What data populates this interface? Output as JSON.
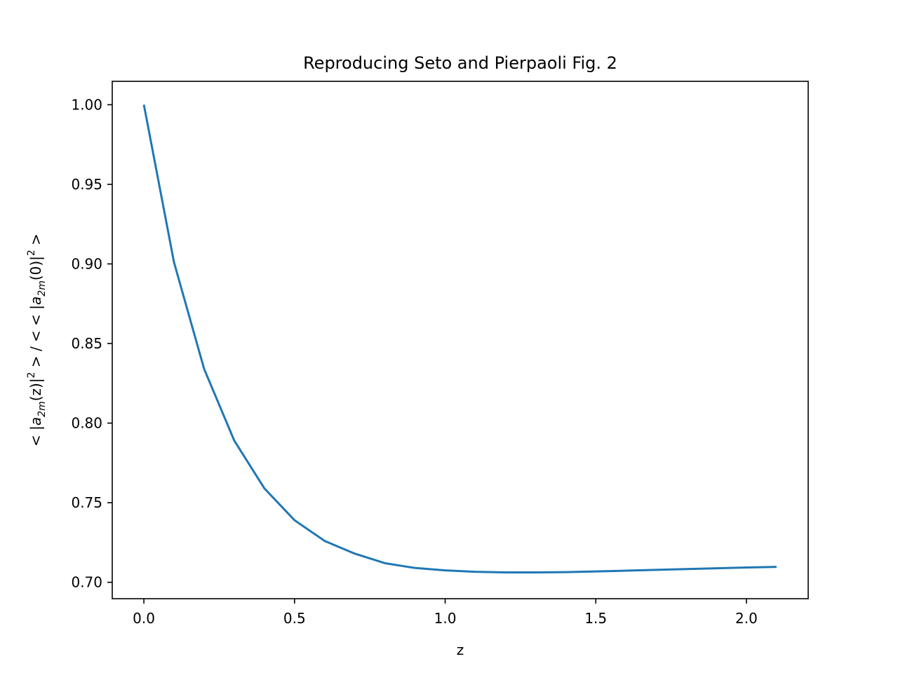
{
  "chart_data": {
    "type": "line",
    "title": "Reproducing Seto and Pierpaoli Fig. 2",
    "xlabel": "z",
    "ylabel": {
      "open": "< |",
      "num_var": "a",
      "num_sub": "2m",
      "num_arg": "(z)|",
      "num_exp": "2",
      "mid": " > / < < |",
      "den_var": "a",
      "den_sub": "2m",
      "den_arg": "(0)|",
      "den_exp": "2",
      "close": " >"
    },
    "xlim": [
      -0.105,
      2.205
    ],
    "ylim": [
      0.6897,
      1.0147
    ],
    "xticks": [
      0.0,
      0.5,
      1.0,
      1.5,
      2.0
    ],
    "xtick_labels": [
      "0.0",
      "0.5",
      "1.0",
      "1.5",
      "2.0"
    ],
    "yticks": [
      0.7,
      0.75,
      0.8,
      0.85,
      0.9,
      0.95,
      1.0
    ],
    "ytick_labels": [
      "0.70",
      "0.75",
      "0.80",
      "0.85",
      "0.90",
      "0.95",
      "1.00"
    ],
    "grid": false,
    "series": [
      {
        "color": "#1f77b4",
        "x": [
          0.0,
          0.1,
          0.2,
          0.3,
          0.4,
          0.5,
          0.6,
          0.7,
          0.8,
          0.9,
          1.0,
          1.1,
          1.2,
          1.3,
          1.4,
          1.5,
          1.6,
          1.7,
          1.8,
          1.9,
          2.0,
          2.1
        ],
        "y": [
          1.0,
          0.901,
          0.834,
          0.789,
          0.759,
          0.739,
          0.726,
          0.718,
          0.712,
          0.709,
          0.7075,
          0.7066,
          0.7062,
          0.7062,
          0.7064,
          0.7068,
          0.7073,
          0.7078,
          0.7083,
          0.7088,
          0.7093,
          0.7097
        ]
      }
    ]
  }
}
